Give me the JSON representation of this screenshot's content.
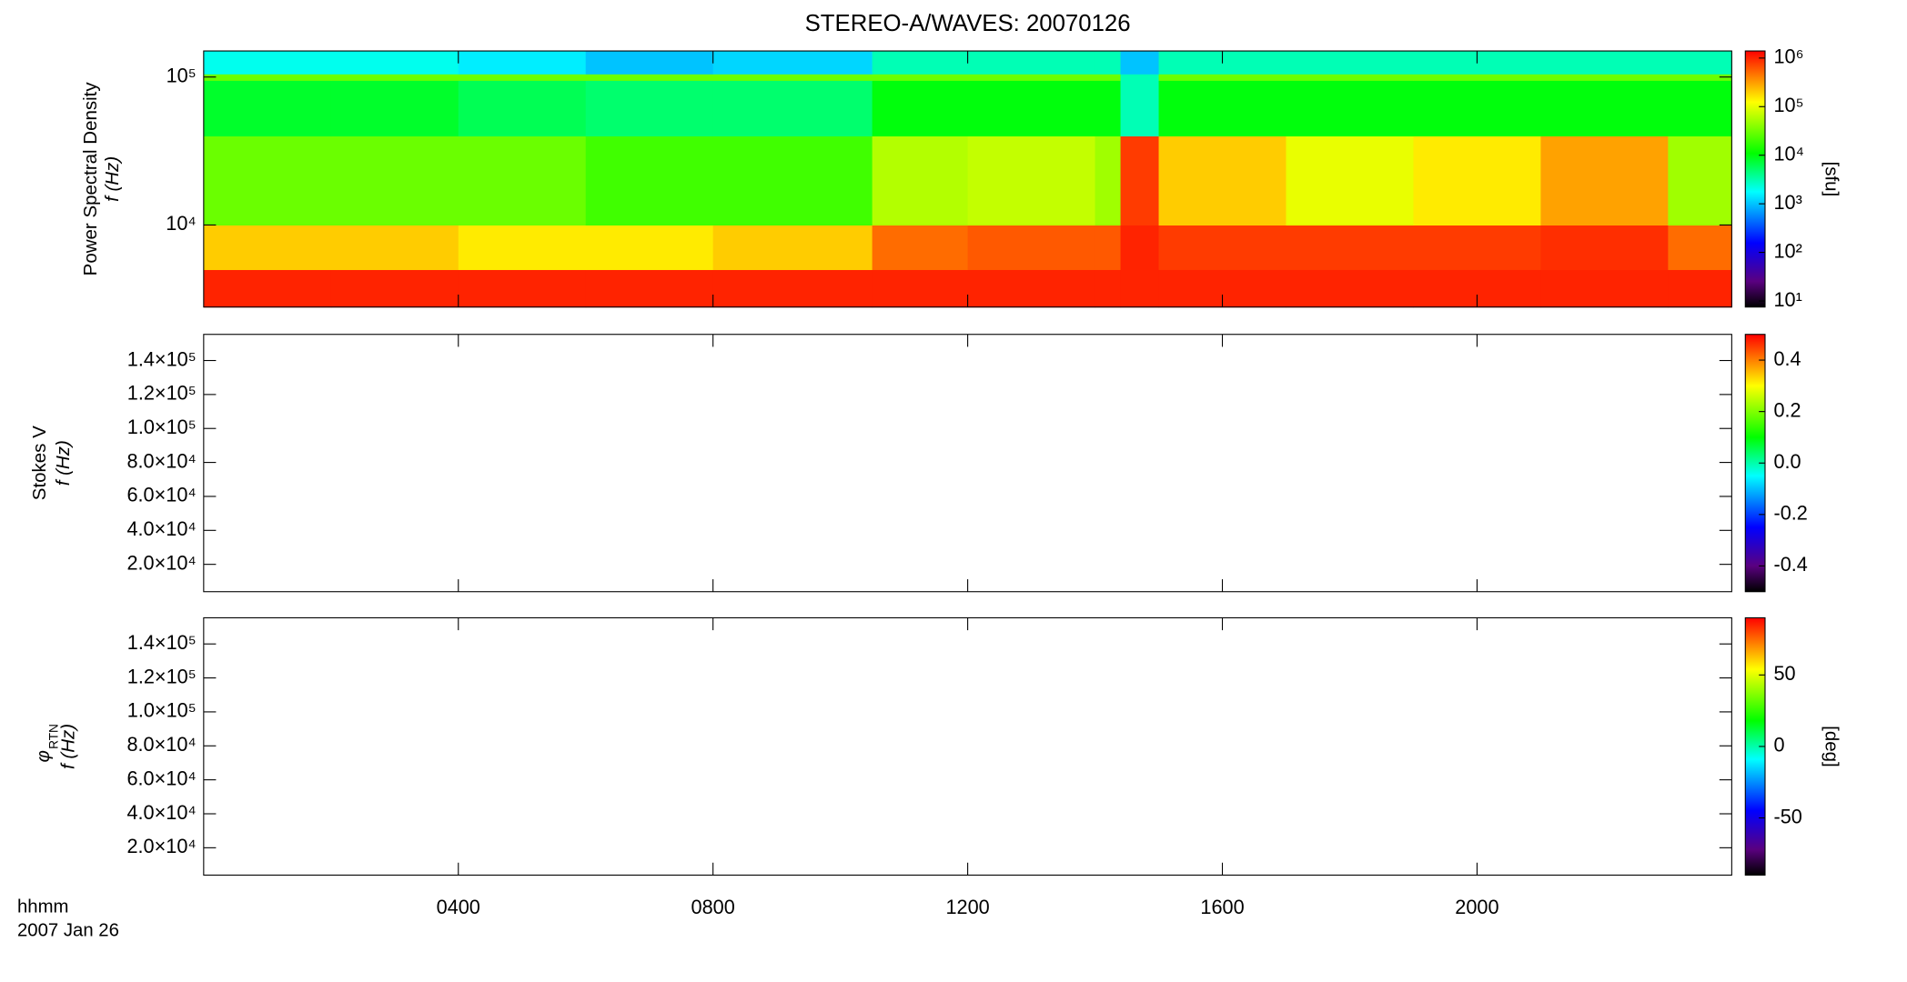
{
  "title": "STEREO-A/WAVES: 20070126",
  "x_label": "hhmm",
  "date": "2007 Jan 26",
  "xlim": [
    0,
    24
  ],
  "xticks": [
    {
      "value": 4,
      "label": "0400"
    },
    {
      "value": 8,
      "label": "0800"
    },
    {
      "value": 12,
      "label": "1200"
    },
    {
      "value": 16,
      "label": "1600"
    },
    {
      "value": 20,
      "label": "2000"
    }
  ],
  "chart_data": [
    {
      "type": "heatmap",
      "ylabel": [
        "Power Spectral Density",
        "f (Hz)"
      ],
      "log_y": true,
      "ylim": [
        2790,
        150000
      ],
      "yticks": [
        {
          "value": 10000,
          "label": "10⁴"
        },
        {
          "value": 100000,
          "label": "10⁵"
        }
      ],
      "time_bins": [
        0,
        2,
        4,
        6,
        8,
        10.5,
        12,
        14,
        14.4,
        15,
        17,
        19,
        21,
        23,
        24
      ],
      "freq_bins": [
        2790,
        5000,
        10000,
        40000,
        95000,
        105000,
        150000
      ],
      "values": [
        [
          1000000,
          1000000,
          1000000,
          1000000,
          1000000,
          1000000,
          1000000,
          1000000,
          1000000,
          1000000,
          1000000,
          1000000,
          1000000,
          1000000
        ],
        [
          200000,
          200000,
          150000,
          150000,
          200000,
          500000,
          600000,
          600000,
          1000000,
          800000,
          800000,
          800000,
          900000,
          500000
        ],
        [
          30000,
          30000,
          30000,
          20000,
          20000,
          60000,
          70000,
          50000,
          800000,
          200000,
          100000,
          150000,
          300000,
          50000
        ],
        [
          8000,
          8000,
          6000,
          5000,
          5000,
          10000,
          10000,
          10000,
          3000,
          10000,
          10000,
          10000,
          10000,
          10000
        ],
        [
          30000,
          30000,
          30000,
          30000,
          30000,
          30000,
          30000,
          30000,
          3000,
          30000,
          30000,
          30000,
          30000,
          30000
        ],
        [
          2000,
          2000,
          1500,
          1000,
          1200,
          3000,
          3000,
          3000,
          1000,
          3000,
          3000,
          3000,
          3000,
          3000
        ]
      ],
      "colorbar": {
        "log": true,
        "lim": [
          7.5,
          1400000
        ],
        "ticks": [
          {
            "value": 10,
            "label": "10¹"
          },
          {
            "value": 100,
            "label": "10²"
          },
          {
            "value": 1000,
            "label": "10³"
          },
          {
            "value": 10000,
            "label": "10⁴"
          },
          {
            "value": 100000,
            "label": "10⁵"
          },
          {
            "value": 1000000,
            "label": "10⁶"
          }
        ],
        "label": "[sfu]"
      }
    },
    {
      "type": "heatmap",
      "ylabel": [
        "Stokes V",
        "f (Hz)"
      ],
      "log_y": false,
      "ylim": [
        3900,
        155400
      ],
      "yticks": [
        {
          "value": 20000,
          "label": "2.0×10⁴"
        },
        {
          "value": 40000,
          "label": "4.0×10⁴"
        },
        {
          "value": 60000,
          "label": "6.0×10⁴"
        },
        {
          "value": 80000,
          "label": "8.0×10⁴"
        },
        {
          "value": 100000,
          "label": "1.0×10⁵"
        },
        {
          "value": 120000,
          "label": "1.2×10⁵"
        },
        {
          "value": 140000,
          "label": "1.4×10⁵"
        }
      ],
      "colorbar": {
        "log": false,
        "lim": [
          -0.5,
          0.5
        ],
        "ticks": [
          -0.4,
          -0.2,
          {
            "value": 0,
            "label": "0.0"
          },
          0.2,
          0.4
        ]
      }
    },
    {
      "type": "heatmap",
      "ylabel": [
        "φ",
        "RTN",
        "f (Hz)"
      ],
      "log_y": false,
      "ylim": [
        3900,
        155400
      ],
      "yticks": [
        {
          "value": 20000,
          "label": "2.0×10⁴"
        },
        {
          "value": 40000,
          "label": "4.0×10⁴"
        },
        {
          "value": 60000,
          "label": "6.0×10⁴"
        },
        {
          "value": 80000,
          "label": "8.0×10⁴"
        },
        {
          "value": 100000,
          "label": "1.0×10⁵"
        },
        {
          "value": 120000,
          "label": "1.2×10⁵"
        },
        {
          "value": 140000,
          "label": "1.4×10⁵"
        }
      ],
      "colorbar": {
        "log": false,
        "lim": [
          -90,
          90
        ],
        "ticks": [
          -50,
          0,
          50
        ],
        "label": "[deg]"
      }
    }
  ]
}
